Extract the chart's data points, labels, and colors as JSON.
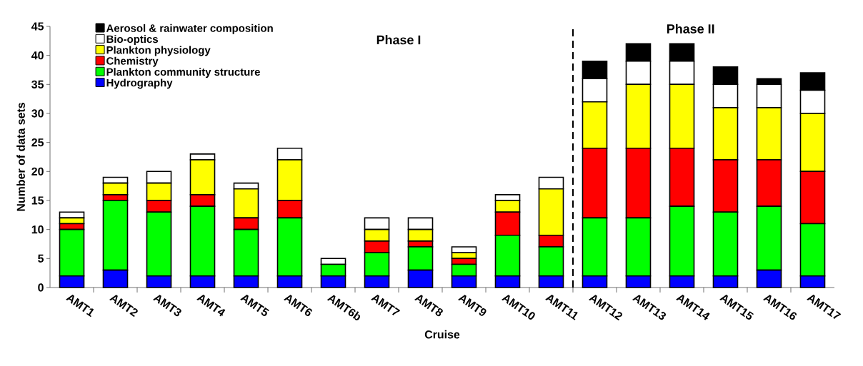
{
  "chart_data": {
    "type": "bar",
    "stacked": true,
    "categories": [
      "AMT1",
      "AMT2",
      "AMT3",
      "AMT4",
      "AMT5",
      "AMT6",
      "AMT6b",
      "AMT7",
      "AMT8",
      "AMT9",
      "AMT10",
      "AMT11",
      "AMT12",
      "AMT13",
      "AMT14",
      "AMT15",
      "AMT16",
      "AMT17"
    ],
    "series": [
      {
        "name": "Hydrography",
        "color": "#0000ff",
        "values": [
          2,
          3,
          2,
          2,
          2,
          2,
          2,
          2,
          3,
          2,
          2,
          2,
          2,
          2,
          2,
          2,
          3,
          2
        ]
      },
      {
        "name": "Plankton community structure",
        "color": "#00ff00",
        "values": [
          8,
          12,
          11,
          12,
          8,
          10,
          2,
          4,
          4,
          2,
          7,
          5,
          10,
          10,
          12,
          11,
          11,
          9
        ]
      },
      {
        "name": "Chemistry",
        "color": "#ff0000",
        "values": [
          1,
          1,
          2,
          2,
          2,
          3,
          0,
          2,
          1,
          1,
          4,
          2,
          12,
          12,
          10,
          9,
          8,
          9
        ]
      },
      {
        "name": "Plankton physiology",
        "color": "#ffff00",
        "values": [
          1,
          2,
          3,
          6,
          5,
          7,
          0,
          2,
          2,
          1,
          2,
          8,
          8,
          11,
          11,
          9,
          9,
          10
        ]
      },
      {
        "name": "Bio-optics",
        "color": "#ffffff",
        "values": [
          1,
          1,
          2,
          1,
          1,
          2,
          1,
          2,
          2,
          1,
          1,
          2,
          4,
          4,
          4,
          4,
          4,
          4
        ]
      },
      {
        "name": "Aerosol & rainwater composition",
        "color": "#000000",
        "values": [
          0,
          0,
          0,
          0,
          0,
          0,
          0,
          0,
          0,
          0,
          0,
          0,
          3,
          3,
          3,
          3,
          1,
          3
        ]
      }
    ],
    "xlabel": "Cruise",
    "ylabel": "Number of data sets",
    "ylim": [
      0,
      45
    ],
    "yticks": [
      0,
      5,
      10,
      15,
      20,
      25,
      30,
      35,
      40,
      45
    ],
    "legend": "top left",
    "annotations": [
      "Phase I",
      "Phase II"
    ]
  }
}
